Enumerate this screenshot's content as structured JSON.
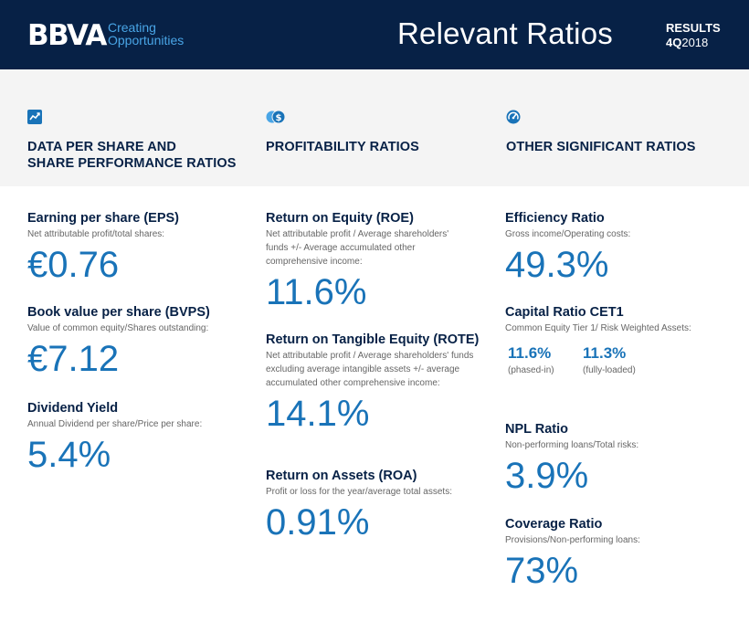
{
  "header": {
    "logo": "BBVA",
    "tagline_line1": "Creating",
    "tagline_line2": "Opportunities",
    "title": "Relevant Ratios",
    "results_label": "RESULTS",
    "period_quarter": "4Q",
    "period_year": "2018"
  },
  "colors": {
    "header_bg": "#072146",
    "accent_light": "#49a5e6",
    "accent_blue": "#1973b8",
    "band_bg": "#f4f4f4"
  },
  "categories": [
    {
      "icon": "trend-chart-icon",
      "title_line1": "DATA PER SHARE AND",
      "title_line2": "SHARE PERFORMANCE RATIOS"
    },
    {
      "icon": "coins-icon",
      "title_line1": "PROFITABILITY RATIOS",
      "title_line2": ""
    },
    {
      "icon": "gauge-icon",
      "title_line1": "OTHER SIGNIFICANT RATIOS",
      "title_line2": ""
    }
  ],
  "share_ratios": {
    "eps": {
      "title": "Earning per share (EPS)",
      "desc": "Net attributable profit/total shares:",
      "value": "€0.76"
    },
    "bvps": {
      "title": "Book value per share (BVPS)",
      "desc": "Value of common equity/Shares outstanding:",
      "value": "€7.12"
    },
    "dividend": {
      "title": "Dividend Yield",
      "desc": "Annual Dividend per share/Price per share:",
      "value": "5.4%"
    }
  },
  "profitability": {
    "roe": {
      "title": "Return on Equity (ROE)",
      "desc": "Net attributable profit / Average shareholders' funds +/- Average accumulated other comprehensive income:",
      "value": "11.6%"
    },
    "rote": {
      "title": "Return on Tangible Equity (ROTE)",
      "desc": "Net attributable profit / Average shareholders' funds excluding average intangible assets  +/- average accumulated other comprehensive income:",
      "value": "14.1%"
    },
    "roa": {
      "title": "Return on Assets (ROA)",
      "desc": "Profit or loss for the year/average total assets:",
      "value": "0.91%"
    }
  },
  "other": {
    "efficiency": {
      "title": "Efficiency Ratio",
      "desc": "Gross income/Operating costs:",
      "value": "49.3%"
    },
    "cet1": {
      "title": "Capital Ratio CET1",
      "desc": "Common Equity Tier 1/ Risk Weighted Assets:",
      "phased_value": "11.6%",
      "phased_label": "(phased-in)",
      "fully_value": "11.3%",
      "fully_label": "(fully-loaded)"
    },
    "npl": {
      "title": "NPL Ratio",
      "desc": "Non-performing loans/Total risks:",
      "value": "3.9%"
    },
    "coverage": {
      "title": "Coverage Ratio",
      "desc": "Provisions/Non-performing loans:",
      "value": "73%"
    }
  }
}
